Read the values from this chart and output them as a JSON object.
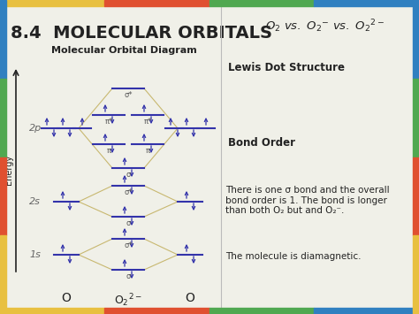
{
  "title": "8.4  MOLECULAR ORBITALS",
  "top_right_title": "O$_2$ vs. O$_2$$^-$ vs. O$_2$$^{2-}$",
  "mo_diagram_title": "Molecular Orbital Diagram",
  "right_section_title": "Lewis Dot Structure",
  "bond_order_label": "Bond Order",
  "description_text": "There is one σ bond and the overall\nbond order is 1. The bond is longer\nthan both O₂ but and O₂⁻.",
  "diamagnetic_text": "The molecule is diamagnetic.",
  "bg_color": "#f0f0e8",
  "text_color": "#222222",
  "orbital_line_color": "#3333aa",
  "sigma_label_color": "#555555",
  "line_color": "#c8b870",
  "energy_label": "Energy",
  "border_top": [
    "#e8c040",
    "#e05030",
    "#50a850",
    "#3080c0"
  ],
  "border_bottom": [
    "#e8c040",
    "#e05030",
    "#50a850",
    "#3080c0"
  ],
  "border_left": [
    "#3080c0",
    "#50a850",
    "#e05030",
    "#e8c040"
  ],
  "border_right": [
    "#3080c0",
    "#50a850",
    "#e05030",
    "#e8c040"
  ]
}
